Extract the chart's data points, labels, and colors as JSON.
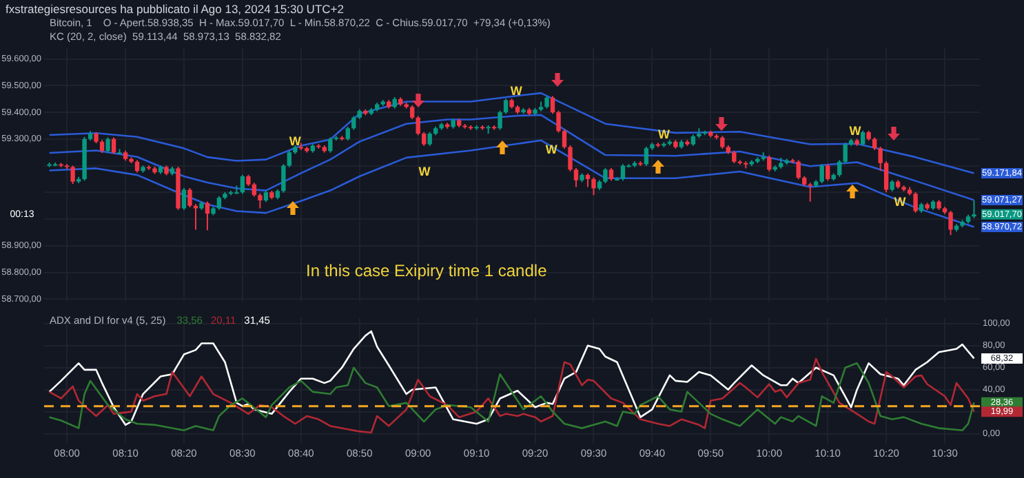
{
  "chart_data": [
    {
      "type": "candlestick",
      "title": "Bitcoin, 1",
      "annotations": [
        "fxstrategiesresources ha pubblicato il Ago 13, 2024 15:30 UTC+2",
        "O - Apert.58.938,35  H - Max.59.017,70  L - Min.58.870,22  C - Chius.59.017,70  +79,34 (+0,13%)",
        "KC (20, 2, close)  59.113,44  58.973,13  58.832,82",
        "In this case Exipiry time 1 candle",
        "W",
        "W",
        "00:13",
        {
          "text": "W",
          "x": 8.65,
          "y": 59290
        },
        {
          "text": "W",
          "x": 9.28,
          "y": 59478
        },
        {
          "text": "W",
          "x": 9.38,
          "y": 59257
        },
        {
          "text": "W",
          "x": 9.7,
          "y": 59315
        },
        {
          "text": "W",
          "x": 10.245,
          "y": 59328
        },
        {
          "text": "59.017,70",
          "x": 10.5833,
          "y": 59017.7
        }
      ],
      "x": [
        7.95,
        7.9667,
        7.9833,
        8,
        8.0167,
        8.0333,
        8.05,
        8.0667,
        8.0833,
        8.1,
        8.1167,
        8.1333,
        8.15,
        8.1667,
        8.1833,
        8.2,
        8.2167,
        8.2333,
        8.25,
        8.2667,
        8.2833,
        8.3,
        8.3167,
        8.3333,
        8.35,
        8.3667,
        8.3833,
        8.4,
        8.4167,
        8.4333,
        8.45,
        8.4667,
        8.4833,
        8.5,
        8.5167,
        8.5333,
        8.55,
        8.5667,
        8.5833,
        8.6,
        8.6167,
        8.6333,
        8.65,
        8.6667,
        8.6833,
        8.7,
        8.7167,
        8.7333,
        8.75,
        8.7667,
        8.7833,
        8.8,
        8.8167,
        8.8333,
        8.85,
        8.8667,
        8.8833,
        8.9,
        8.9167,
        8.9333,
        8.95,
        8.9667,
        8.9833,
        9,
        9.0167,
        9.0333,
        9.05,
        9.0667,
        9.0833,
        9.1,
        9.1167,
        9.1333,
        9.15,
        9.1667,
        9.1833,
        9.2,
        9.2167,
        9.2333,
        9.25,
        9.2667,
        9.2833,
        9.3,
        9.3167,
        9.3333,
        9.35,
        9.3667,
        9.3833,
        9.4,
        9.4167,
        9.4333,
        9.45,
        9.4667,
        9.4833,
        9.5,
        9.5167,
        9.5333,
        9.55,
        9.5667,
        9.5833,
        9.6,
        9.6167,
        9.6333,
        9.65,
        9.6667,
        9.6833,
        9.7,
        9.7167,
        9.7333,
        9.75,
        9.7667,
        9.7833,
        9.8,
        9.8167,
        9.8333,
        9.85,
        9.8667,
        9.8833,
        9.9,
        9.9167,
        9.9333,
        9.95,
        9.9667,
        9.9833,
        10,
        10.0167,
        10.0333,
        10.05,
        10.0667,
        10.0833,
        10.1,
        10.1167,
        10.1333,
        10.15,
        10.1667,
        10.1833,
        10.2,
        10.2167,
        10.2333,
        10.25,
        10.2667,
        10.2833,
        10.3,
        10.3167,
        10.3333,
        10.35,
        10.3667,
        10.3833,
        10.4,
        10.4167,
        10.4333,
        10.45,
        10.4667,
        10.4833,
        10.5,
        10.5167,
        10.5333,
        10.55,
        10.5667,
        10.5833
      ],
      "ohlc": [
        [
          59200,
          59212,
          59195,
          59205
        ],
        [
          59205,
          59212,
          59198,
          59205
        ],
        [
          59205,
          59210,
          59194,
          59200
        ],
        [
          59200,
          59206,
          59188,
          59195
        ],
        [
          59195,
          59200,
          59132,
          59140
        ],
        [
          59140,
          59158,
          59134,
          59150
        ],
        [
          59150,
          59308,
          59144,
          59300
        ],
        [
          59300,
          59330,
          59294,
          59320
        ],
        [
          59320,
          59326,
          59284,
          59290
        ],
        [
          59290,
          59296,
          59248,
          59255
        ],
        [
          59255,
          59306,
          59249,
          59300
        ],
        [
          59300,
          59306,
          59244,
          59250
        ],
        [
          59250,
          59262,
          59244,
          59250
        ],
        [
          59250,
          59256,
          59219,
          59225
        ],
        [
          59225,
          59231,
          59209,
          59215
        ],
        [
          59215,
          59221,
          59174,
          59180
        ],
        [
          59180,
          59201,
          59174,
          59195
        ],
        [
          59195,
          59201,
          59184,
          59190
        ],
        [
          59190,
          59196,
          59169,
          59175
        ],
        [
          59175,
          59201,
          59169,
          59195
        ],
        [
          59195,
          59201,
          59164,
          59170
        ],
        [
          59170,
          59196,
          59164,
          59190
        ],
        [
          59190,
          59196,
          59034,
          59040
        ],
        [
          59040,
          59116,
          59034,
          59110
        ],
        [
          59110,
          59116,
          59044,
          59050
        ],
        [
          59050,
          59056,
          58960,
          59040
        ],
        [
          59040,
          59066,
          59034,
          59060
        ],
        [
          59060,
          59066,
          58958,
          59020
        ],
        [
          59020,
          59046,
          59014,
          59040
        ],
        [
          59040,
          59086,
          59034,
          59080
        ],
        [
          59080,
          59101,
          59074,
          59095
        ],
        [
          59095,
          59106,
          59089,
          59100
        ],
        [
          59100,
          59125,
          59094,
          59100
        ],
        [
          59100,
          59166,
          59094,
          59160
        ],
        [
          59160,
          59166,
          59124,
          59130
        ],
        [
          59130,
          59136,
          59084,
          59090
        ],
        [
          59090,
          59096,
          59040,
          59070
        ],
        [
          59070,
          59106,
          59064,
          59100
        ],
        [
          59100,
          59106,
          59074,
          59080
        ],
        [
          59080,
          59111,
          59074,
          59105
        ],
        [
          59105,
          59206,
          59099,
          59200
        ],
        [
          59200,
          59256,
          59194,
          59250
        ],
        [
          59250,
          59276,
          59244,
          59270
        ],
        [
          59270,
          59285,
          59259,
          59265
        ],
        [
          59265,
          59271,
          59249,
          59255
        ],
        [
          59255,
          59281,
          59249,
          59275
        ],
        [
          59275,
          59281,
          59264,
          59270
        ],
        [
          59270,
          59276,
          59249,
          59255
        ],
        [
          59255,
          59306,
          59249,
          59300
        ],
        [
          59300,
          59311,
          59294,
          59305
        ],
        [
          59305,
          59311,
          59294,
          59300
        ],
        [
          59300,
          59346,
          59294,
          59340
        ],
        [
          59340,
          59386,
          59334,
          59380
        ],
        [
          59380,
          59411,
          59374,
          59405
        ],
        [
          59405,
          59411,
          59389,
          59395
        ],
        [
          59395,
          59416,
          59389,
          59410
        ],
        [
          59410,
          59436,
          59404,
          59430
        ],
        [
          59430,
          59446,
          59424,
          59440
        ],
        [
          59440,
          59446,
          59414,
          59420
        ],
        [
          59420,
          59457,
          59414,
          59450
        ],
        [
          59450,
          59456,
          59424,
          59430
        ],
        [
          59430,
          59436,
          59414,
          59420
        ],
        [
          59420,
          59426,
          59374,
          59380
        ],
        [
          59380,
          59386,
          59314,
          59320
        ],
        [
          59320,
          59326,
          59274,
          59280
        ],
        [
          59280,
          59326,
          59274,
          59320
        ],
        [
          59320,
          59346,
          59314,
          59340
        ],
        [
          59340,
          59361,
          59334,
          59355
        ],
        [
          59355,
          59361,
          59339,
          59345
        ],
        [
          59345,
          59376,
          59339,
          59370
        ],
        [
          59370,
          59376,
          59344,
          59350
        ],
        [
          59350,
          59356,
          59339,
          59345
        ],
        [
          59345,
          59351,
          59334,
          59340
        ],
        [
          59340,
          59351,
          59334,
          59345
        ],
        [
          59345,
          59351,
          59334,
          59340
        ],
        [
          59340,
          59351,
          59320,
          59345
        ],
        [
          59345,
          59351,
          59334,
          59340
        ],
        [
          59340,
          59406,
          59334,
          59400
        ],
        [
          59400,
          59451,
          59394,
          59445
        ],
        [
          59445,
          59451,
          59414,
          59420
        ],
        [
          59420,
          59426,
          59394,
          59400
        ],
        [
          59400,
          59416,
          59394,
          59410
        ],
        [
          59410,
          59416,
          59389,
          59395
        ],
        [
          59395,
          59416,
          59389,
          59410
        ],
        [
          59410,
          59440,
          59404,
          59420
        ],
        [
          59420,
          59461,
          59414,
          59455
        ],
        [
          59455,
          59461,
          59394,
          59400
        ],
        [
          59400,
          59406,
          59324,
          59330
        ],
        [
          59330,
          59336,
          59264,
          59270
        ],
        [
          59270,
          59276,
          59179,
          59185
        ],
        [
          59185,
          59191,
          59120,
          59145
        ],
        [
          59145,
          59171,
          59139,
          59165
        ],
        [
          59165,
          59171,
          59120,
          59150
        ],
        [
          59150,
          59156,
          59090,
          59115
        ],
        [
          59115,
          59146,
          59109,
          59140
        ],
        [
          59140,
          59191,
          59134,
          59185
        ],
        [
          59185,
          59191,
          59144,
          59150
        ],
        [
          59150,
          59156,
          59144,
          59150
        ],
        [
          59150,
          59206,
          59144,
          59200
        ],
        [
          59200,
          59206,
          59194,
          59200
        ],
        [
          59200,
          59216,
          59194,
          59210
        ],
        [
          59210,
          59216,
          59199,
          59205
        ],
        [
          59205,
          59271,
          59199,
          59265
        ],
        [
          59265,
          59286,
          59259,
          59280
        ],
        [
          59280,
          59286,
          59269,
          59275
        ],
        [
          59275,
          59288,
          59269,
          59282
        ],
        [
          59282,
          59296,
          59276,
          59290
        ],
        [
          59290,
          59296,
          59264,
          59270
        ],
        [
          59270,
          59296,
          59264,
          59290
        ],
        [
          59290,
          59296,
          59274,
          59280
        ],
        [
          59280,
          59316,
          59274,
          59310
        ],
        [
          59310,
          59340,
          59304,
          59320
        ],
        [
          59320,
          59331,
          59314,
          59325
        ],
        [
          59325,
          59331,
          59306,
          59312
        ],
        [
          59312,
          59318,
          59299,
          59305
        ],
        [
          59305,
          59311,
          59264,
          59270
        ],
        [
          59270,
          59276,
          59244,
          59250
        ],
        [
          59250,
          59256,
          59209,
          59215
        ],
        [
          59215,
          59221,
          59204,
          59210
        ],
        [
          59210,
          59216,
          59190,
          59205
        ],
        [
          59205,
          59221,
          59199,
          59215
        ],
        [
          59215,
          59231,
          59209,
          59225
        ],
        [
          59225,
          59250,
          59219,
          59232
        ],
        [
          59232,
          59238,
          59179,
          59185
        ],
        [
          59185,
          59201,
          59179,
          59195
        ],
        [
          59195,
          59230,
          59189,
          59210
        ],
        [
          59210,
          59226,
          59204,
          59220
        ],
        [
          59220,
          59226,
          59209,
          59215
        ],
        [
          59215,
          59221,
          59149,
          59155
        ],
        [
          59155,
          59161,
          59124,
          59130
        ],
        [
          59130,
          59136,
          59065,
          59125
        ],
        [
          59125,
          59146,
          59119,
          59140
        ],
        [
          59140,
          59206,
          59134,
          59200
        ],
        [
          59200,
          59206,
          59144,
          59150
        ],
        [
          59150,
          59171,
          59144,
          59165
        ],
        [
          59165,
          59221,
          59159,
          59215
        ],
        [
          59215,
          59286,
          59209,
          59280
        ],
        [
          59280,
          59301,
          59274,
          59295
        ],
        [
          59295,
          59301,
          59274,
          59280
        ],
        [
          59280,
          59331,
          59274,
          59325
        ],
        [
          59325,
          59331,
          59294,
          59300
        ],
        [
          59300,
          59306,
          59259,
          59265
        ],
        [
          59265,
          59271,
          59180,
          59210
        ],
        [
          59210,
          59216,
          59100,
          59110
        ],
        [
          59110,
          59146,
          59104,
          59140
        ],
        [
          59140,
          59146,
          59114,
          59120
        ],
        [
          59120,
          59126,
          59104,
          59110
        ],
        [
          59110,
          59120,
          59089,
          59095
        ],
        [
          59095,
          59101,
          59024,
          59030
        ],
        [
          59030,
          59061,
          59024,
          59055
        ],
        [
          59055,
          59061,
          59034,
          59040
        ],
        [
          59040,
          59071,
          59034,
          59065
        ],
        [
          59065,
          59071,
          59034,
          59040
        ],
        [
          59040,
          59046,
          59019,
          59025
        ],
        [
          59025,
          59031,
          58940,
          58960
        ],
        [
          58960,
          58981,
          58954,
          58975
        ],
        [
          58975,
          58996,
          58969,
          58990
        ],
        [
          58990,
          59016,
          58984,
          59010
        ],
        [
          59010,
          59070,
          59004,
          59017.7
        ]
      ],
      "series": [
        {
          "type": "line",
          "color": "#2a5bd7",
          "x": [
            7.95,
            8.0833,
            8.2,
            8.3333,
            8.4,
            8.4833,
            8.5667,
            8.6667,
            8.75,
            8.8333,
            8.9667,
            9.0833,
            9.15,
            9.2833,
            9.35,
            9.5333,
            9.7333,
            9.9167,
            10.1167,
            10.25,
            10.4167,
            10.5833
          ],
          "values": [
            59315,
            59322,
            59308,
            59265,
            59232,
            59218,
            59223,
            59275,
            59298,
            59395,
            59440,
            59440,
            59440,
            59462,
            59472,
            59357,
            59323,
            59327,
            59280,
            59282,
            59232,
            59171.84
          ],
          "value_labels": [
            null,
            null,
            null,
            null,
            null,
            null,
            null,
            null,
            null,
            null,
            null,
            null,
            null,
            null,
            null,
            null,
            null,
            null,
            null,
            null,
            null,
            "59.171,84"
          ]
        },
        {
          "type": "line",
          "color": "#2a5bd7",
          "x": [
            7.95,
            8.0833,
            8.2,
            8.3333,
            8.4,
            8.4833,
            8.5667,
            8.6667,
            8.75,
            8.8333,
            8.9667,
            9.0833,
            9.15,
            9.2833,
            9.35,
            9.5333,
            9.7333,
            9.9167,
            10.1167,
            10.25,
            10.4167,
            10.5833
          ],
          "values": [
            59248,
            59257,
            59233,
            59160,
            59137,
            59115,
            59107,
            59172,
            59223,
            59290,
            59357,
            59373,
            59373,
            59387,
            59390,
            59240,
            59237,
            59253,
            59198,
            59213,
            59143,
            59071.27
          ],
          "value_labels": [
            null,
            null,
            null,
            null,
            null,
            null,
            null,
            null,
            null,
            null,
            null,
            null,
            null,
            null,
            null,
            null,
            null,
            null,
            null,
            null,
            null,
            "59.071,27"
          ]
        },
        {
          "type": "line",
          "color": "#2a5bd7",
          "x": [
            7.95,
            8.0833,
            8.2,
            8.3333,
            8.4,
            8.4833,
            8.5667,
            8.6667,
            8.75,
            8.8333,
            8.9667,
            9.0833,
            9.15,
            9.2833,
            9.35,
            9.5333,
            9.7333,
            9.9167,
            10.1167,
            10.25,
            10.4167,
            10.5833
          ],
          "values": [
            59182,
            59190,
            59165,
            59090,
            59055,
            59030,
            59023,
            59068,
            59107,
            59160,
            59230,
            59247,
            59257,
            59282,
            59295,
            59153,
            59153,
            59178,
            59120,
            59135,
            59043,
            58970.72
          ],
          "value_labels": [
            null,
            null,
            null,
            null,
            null,
            null,
            null,
            null,
            null,
            null,
            null,
            null,
            null,
            null,
            null,
            null,
            null,
            null,
            null,
            null,
            null,
            "58.970,72"
          ]
        }
      ],
      "xlim": [
        7.935,
        10.6
      ],
      "xticks": [
        {
          "value": 8,
          "label": null
        },
        {
          "value": 8.1667,
          "label": null
        },
        {
          "value": 8.3333,
          "label": null
        },
        {
          "value": 8.5,
          "label": null
        },
        {
          "value": 8.6667,
          "label": null
        },
        {
          "value": 8.8333,
          "label": null
        },
        {
          "value": 9,
          "label": null
        },
        {
          "value": 9.1667,
          "label": null
        },
        {
          "value": 9.3333,
          "label": null
        },
        {
          "value": 9.5,
          "label": null
        },
        {
          "value": 9.6667,
          "label": null
        },
        {
          "value": 9.8333,
          "label": null
        },
        {
          "value": 10,
          "label": null
        },
        {
          "value": 10.1667,
          "label": null
        },
        {
          "value": 10.3333,
          "label": null
        },
        {
          "value": 10.5,
          "label": null
        }
      ],
      "ylim": [
        58690,
        59640
      ],
      "yticks": [
        {
          "value": 58700,
          "label": "58.700,00"
        },
        {
          "value": 58800,
          "label": "58.800,00"
        },
        {
          "value": 58900,
          "label": "58.900,00"
        },
        {
          "value": 59000,
          "label": null
        },
        {
          "value": 59100,
          "label": null
        },
        {
          "value": 59200,
          "label": null
        },
        {
          "value": 59300,
          "label": "59.300,00"
        },
        {
          "value": 59400,
          "label": "59.400,00"
        },
        {
          "value": 59500,
          "label": "59.500,00"
        },
        {
          "value": 59600,
          "label": "59.600,00"
        }
      ],
      "grid": true,
      "tick_labels": "y",
      "marker": "none"
    },
    {
      "type": "line",
      "title": "ADX and DI for v4 (5, 25)",
      "annotations": [
        "33,56",
        "20,11",
        "31,45"
      ],
      "series": [
        {
          "color": "#2e7d32",
          "x": [
            7.95,
            7.9833,
            8.0333,
            8.05,
            8.0667,
            8.1167,
            8.1667,
            8.2,
            8.25,
            8.3333,
            8.3667,
            8.4167,
            8.4333,
            8.4667,
            8.5,
            8.5667,
            8.5833,
            8.6333,
            8.6667,
            8.7,
            8.75,
            8.7667,
            8.8,
            8.8167,
            8.85,
            8.8833,
            8.9167,
            8.9667,
            9.0167,
            9.05,
            9.0833,
            9.15,
            9.2,
            9.2333,
            9.3,
            9.35,
            9.3833,
            9.4167,
            9.4667,
            9.5333,
            9.5667,
            9.5833,
            9.6167,
            9.6333,
            9.6833,
            9.7167,
            9.75,
            9.7667,
            9.8,
            9.8333,
            9.8667,
            9.9167,
            9.9667,
            10.0167,
            10.0333,
            10.0667,
            10.0833,
            10.1333,
            10.15,
            10.1833,
            10.2167,
            10.25,
            10.2833,
            10.3167,
            10.35,
            10.3833,
            10.4333,
            10.4833,
            10.55,
            10.5667,
            10.5833
          ],
          "values": [
            15,
            12,
            5,
            36,
            48,
            26,
            13,
            9,
            8,
            3,
            7,
            3,
            16,
            26,
            32,
            15,
            26,
            42,
            48,
            38,
            36,
            42,
            44,
            60,
            46,
            42,
            25,
            28,
            11,
            22,
            26,
            24,
            11,
            54,
            22,
            34,
            20,
            9,
            5,
            11,
            7,
            20,
            18,
            26,
            34,
            22,
            20,
            38,
            28,
            18,
            13,
            7,
            22,
            9,
            15,
            11,
            16,
            7,
            34,
            28,
            60,
            64,
            46,
            16,
            13,
            15,
            9,
            5,
            3,
            9,
            28.36
          ],
          "value_labels": [
            null,
            null,
            null,
            null,
            null,
            null,
            null,
            null,
            null,
            null,
            null,
            null,
            null,
            null,
            null,
            null,
            null,
            null,
            null,
            null,
            null,
            null,
            null,
            null,
            null,
            null,
            null,
            null,
            null,
            null,
            null,
            null,
            null,
            null,
            null,
            null,
            null,
            null,
            null,
            null,
            null,
            null,
            null,
            null,
            null,
            null,
            null,
            null,
            null,
            null,
            null,
            null,
            null,
            null,
            null,
            null,
            null,
            null,
            null,
            null,
            null,
            null,
            null,
            null,
            null,
            null,
            null,
            null,
            null,
            null,
            "28,36"
          ]
        },
        {
          "color": "#b22833",
          "x": [
            7.95,
            7.9833,
            8.0167,
            8.0333,
            8.0833,
            8.1167,
            8.1333,
            8.1833,
            8.2,
            8.2167,
            8.25,
            8.2833,
            8.3,
            8.35,
            8.3833,
            8.4167,
            8.4667,
            8.5167,
            8.55,
            8.5833,
            8.6167,
            8.65,
            8.6833,
            8.7167,
            8.75,
            8.8333,
            8.8667,
            8.8833,
            8.9167,
            8.9667,
            9,
            9.0333,
            9.0833,
            9.1167,
            9.1667,
            9.2,
            9.2333,
            9.25,
            9.2833,
            9.3,
            9.3333,
            9.35,
            9.3833,
            9.4167,
            9.4333,
            9.4667,
            9.4833,
            9.5,
            9.55,
            9.5833,
            9.6333,
            9.6833,
            9.7167,
            9.75,
            9.8,
            9.8167,
            9.8333,
            9.8667,
            9.9167,
            9.9333,
            9.9667,
            10,
            10.0167,
            10.0333,
            10.05,
            10.0833,
            10.1167,
            10.1333,
            10.15,
            10.2,
            10.25,
            10.2833,
            10.3,
            10.3333,
            10.35,
            10.3833,
            10.4167,
            10.4333,
            10.45,
            10.5,
            10.5167,
            10.5333,
            10.5667,
            10.5833
          ],
          "values": [
            38,
            32,
            43,
            30,
            16,
            26,
            18,
            20,
            36,
            30,
            34,
            36,
            56,
            34,
            52,
            36,
            28,
            18,
            26,
            24,
            16,
            9,
            16,
            13,
            7,
            2,
            1,
            16,
            7,
            22,
            49,
            34,
            26,
            15,
            20,
            32,
            16,
            18,
            16,
            18,
            15,
            11,
            16,
            65,
            63,
            44,
            49,
            48,
            32,
            28,
            13,
            9,
            7,
            13,
            8,
            5,
            30,
            32,
            46,
            42,
            33,
            45,
            38,
            40,
            33,
            46,
            49,
            68,
            56,
            28,
            18,
            11,
            9,
            56,
            52,
            42,
            52,
            53,
            45,
            34,
            26,
            46,
            32,
            19.99
          ],
          "value_labels": [
            null,
            null,
            null,
            null,
            null,
            null,
            null,
            null,
            null,
            null,
            null,
            null,
            null,
            null,
            null,
            null,
            null,
            null,
            null,
            null,
            null,
            null,
            null,
            null,
            null,
            null,
            null,
            null,
            null,
            null,
            null,
            null,
            null,
            null,
            null,
            null,
            null,
            null,
            null,
            null,
            null,
            null,
            null,
            null,
            null,
            null,
            null,
            null,
            null,
            null,
            null,
            null,
            null,
            null,
            null,
            null,
            null,
            null,
            null,
            null,
            null,
            null,
            null,
            null,
            null,
            null,
            null,
            null,
            null,
            null,
            null,
            null,
            null,
            null,
            null,
            null,
            null,
            null,
            null,
            null,
            null,
            null,
            null,
            "19,99"
          ]
        },
        {
          "color": "#ffffff",
          "x": [
            7.95,
            7.9833,
            8.0333,
            8.05,
            8.0833,
            8.1,
            8.1333,
            8.1667,
            8.1833,
            8.2167,
            8.2667,
            8.3,
            8.3333,
            8.3667,
            8.3833,
            8.4167,
            8.45,
            8.4833,
            8.5,
            8.5167,
            8.5333,
            8.5833,
            8.6333,
            8.6667,
            8.7,
            8.7333,
            8.75,
            8.7833,
            8.8167,
            8.85,
            8.8667,
            8.8833,
            8.9167,
            8.9667,
            8.9833,
            9.05,
            9.1,
            9.1667,
            9.2,
            9.2333,
            9.2833,
            9.3333,
            9.3667,
            9.3833,
            9.4167,
            9.45,
            9.4833,
            9.5167,
            9.5333,
            9.5667,
            9.6333,
            9.6667,
            9.7167,
            9.7333,
            9.7667,
            9.8,
            9.8333,
            9.8833,
            9.9,
            9.95,
            9.9833,
            10.0333,
            10.05,
            10.0667,
            10.0833,
            10.1333,
            10.1833,
            10.2333,
            10.25,
            10.2833,
            10.3167,
            10.3667,
            10.3833,
            10.4167,
            10.45,
            10.4833,
            10.5333,
            10.55,
            10.5833
          ],
          "values": [
            38,
            48,
            64,
            58,
            58,
            46,
            24,
            8,
            11,
            36,
            52,
            54,
            72,
            76,
            82,
            82,
            65,
            28,
            25,
            27,
            22,
            18,
            38,
            50,
            50,
            46,
            48,
            60,
            77,
            89,
            93,
            79,
            62,
            36,
            40,
            42,
            13,
            9,
            13,
            32,
            39,
            24,
            28,
            27,
            50,
            56,
            80,
            77,
            70,
            65,
            15,
            22,
            53,
            48,
            47,
            56,
            53,
            40,
            46,
            62,
            53,
            44,
            44,
            50,
            46,
            60,
            53,
            24,
            40,
            64,
            54,
            50,
            44,
            58,
            65,
            74,
            77,
            81,
            68.32
          ],
          "value_labels": [
            null,
            null,
            null,
            null,
            null,
            null,
            null,
            null,
            null,
            null,
            null,
            null,
            null,
            null,
            null,
            null,
            null,
            null,
            null,
            null,
            null,
            null,
            null,
            null,
            null,
            null,
            null,
            null,
            null,
            null,
            null,
            null,
            null,
            null,
            null,
            null,
            null,
            null,
            null,
            null,
            null,
            null,
            null,
            null,
            null,
            null,
            null,
            null,
            null,
            null,
            null,
            null,
            null,
            null,
            null,
            null,
            null,
            null,
            null,
            null,
            null,
            null,
            null,
            null,
            null,
            null,
            null,
            null,
            null,
            null,
            null,
            null,
            null,
            null,
            null,
            null,
            null,
            null,
            "68,32"
          ]
        }
      ],
      "ref_lines": [
        {
          "axis": "y",
          "value": 25,
          "color": "#f5a623",
          "line_style": "dashed"
        }
      ],
      "xlim": [
        7.935,
        10.6
      ],
      "xticks": [
        {
          "value": 8,
          "label": "08:00"
        },
        {
          "value": 8.1667,
          "label": "08:10"
        },
        {
          "value": 8.3333,
          "label": "08:20"
        },
        {
          "value": 8.5,
          "label": "08:30"
        },
        {
          "value": 8.6667,
          "label": "08:40"
        },
        {
          "value": 8.8333,
          "label": "08:50"
        },
        {
          "value": 9,
          "label": "09:00"
        },
        {
          "value": 9.1667,
          "label": "09:10"
        },
        {
          "value": 9.3333,
          "label": "09:20"
        },
        {
          "value": 9.5,
          "label": "09:30"
        },
        {
          "value": 9.6667,
          "label": "09:40"
        },
        {
          "value": 9.8333,
          "label": "09:50"
        },
        {
          "value": 10,
          "label": "10:00"
        },
        {
          "value": 10.1667,
          "label": "10:10"
        },
        {
          "value": 10.3333,
          "label": "10:20"
        },
        {
          "value": 10.5,
          "label": "10:30"
        }
      ],
      "ylim": [
        -9,
        105
      ],
      "yticks": [
        {
          "value": 0,
          "label": "0,00"
        },
        {
          "value": 20,
          "label": null
        },
        {
          "value": 40,
          "label": "40,00"
        },
        {
          "value": 60,
          "label": "60,00"
        },
        {
          "value": 80,
          "label": "80,00"
        },
        {
          "value": 100,
          "label": "100,00"
        }
      ],
      "grid": true,
      "marker": "none"
    }
  ]
}
